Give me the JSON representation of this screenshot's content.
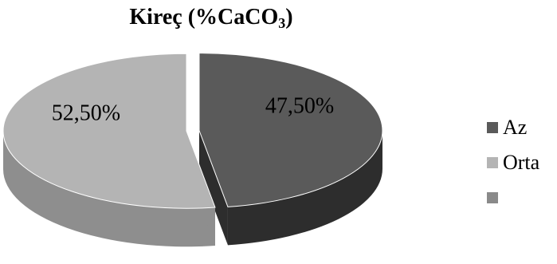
{
  "chart_data": {
    "type": "pie",
    "title": "Kireç (%CaCO",
    "title_subscript": "3",
    "title_suffix": ")",
    "slices": [
      {
        "label": "Az",
        "value": 47.5,
        "display": "47,50%",
        "color": "#5a5a5a",
        "side_color": "#2d2d2d"
      },
      {
        "label": "Orta",
        "value": 52.5,
        "display": "52,50%",
        "color": "#b4b4b4",
        "side_color": "#8e8e8e"
      },
      {
        "label": "",
        "value": 0,
        "display": "",
        "color": "#8a8a8a",
        "side_color": "#6a6a6a"
      }
    ],
    "legend_position": "right",
    "three_d": true
  }
}
